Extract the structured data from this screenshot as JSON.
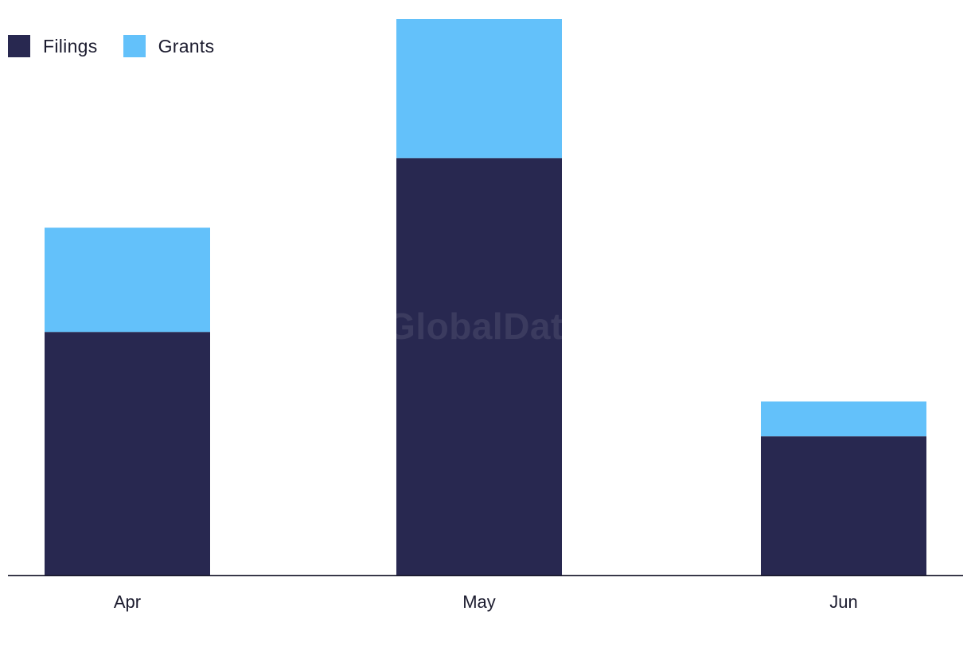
{
  "legend": {
    "items": [
      {
        "label": "Filings",
        "color": "#282850"
      },
      {
        "label": "Grants",
        "color": "#63c1fa"
      }
    ]
  },
  "watermark": "GlobalData",
  "chart_data": {
    "type": "bar",
    "stacked": true,
    "categories": [
      "Apr",
      "May",
      "Jun"
    ],
    "series": [
      {
        "name": "Filings",
        "values": [
          7,
          12,
          4
        ],
        "color": "#282850"
      },
      {
        "name": "Grants",
        "values": [
          3,
          4,
          1
        ],
        "color": "#63c1fa"
      }
    ],
    "title": "",
    "xlabel": "",
    "ylabel": "",
    "ylim": [
      0,
      16
    ],
    "grid": false,
    "legend_position": "top-left"
  }
}
